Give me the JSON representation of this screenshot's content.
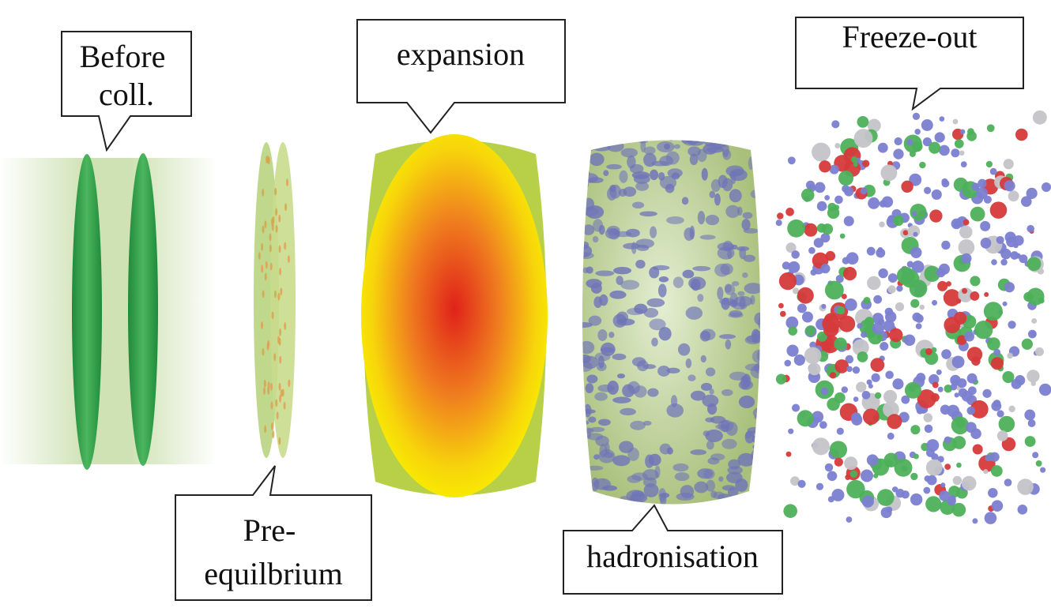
{
  "callouts": [
    {
      "lines": [
        "Before",
        "coll."
      ]
    },
    {
      "lines": [
        "expansion"
      ]
    },
    {
      "lines": [
        "Pre-",
        "equilbrium"
      ]
    },
    {
      "lines": [
        "hadronisation"
      ]
    },
    {
      "lines": [
        "Freeze-out"
      ]
    }
  ]
}
